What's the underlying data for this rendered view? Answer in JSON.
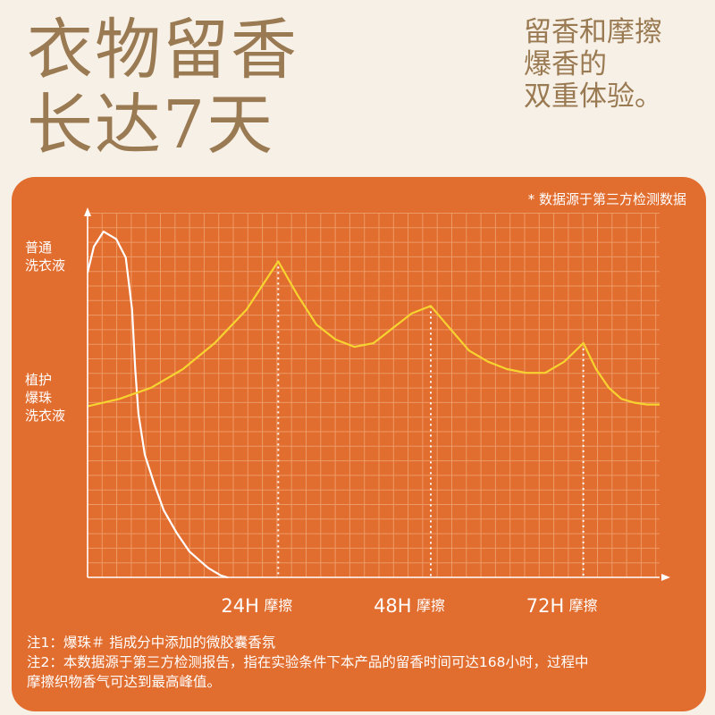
{
  "headline": {
    "line1": "衣物留香",
    "line2": "长达7天"
  },
  "tagline": {
    "line1": "留香和摩擦",
    "line2": "爆香的",
    "line3": "双重体验。"
  },
  "source_note": "* 数据源于第三方检测数据",
  "notes": {
    "note1": "注1：爆珠＃ 指成分中添加的微胶囊香氛",
    "note2_line1": "注2：本数据源于第三方检测报告，指在实验条件下本产品的留香时间可达168小时，过程中",
    "note2_line2": "摩擦织物香气可达到最高峰值。"
  },
  "colors": {
    "panel": "#e16d2f",
    "headline": "#9a7a52",
    "beads_line": "#f7d330",
    "regular_line": "#ffffff",
    "grid": "#ee9a66"
  },
  "chart_data": {
    "type": "line",
    "title": "",
    "xlabel": "",
    "ylabel": "",
    "x_ticks": [
      {
        "x": 24,
        "label": "24H",
        "kind": "time"
      },
      {
        "x": 30,
        "label": "摩擦",
        "kind": "friction"
      },
      {
        "x": 48,
        "label": "48H",
        "kind": "time"
      },
      {
        "x": 54,
        "label": "摩擦",
        "kind": "friction"
      },
      {
        "x": 72,
        "label": "72H",
        "kind": "time"
      },
      {
        "x": 78,
        "label": "摩擦",
        "kind": "friction"
      }
    ],
    "xlim": [
      0,
      90
    ],
    "ylim": [
      0,
      100
    ],
    "friction_markers": [
      30,
      54,
      78
    ],
    "series": [
      {
        "name": "普通洗衣液",
        "label_lines": [
          "普通",
          "洗衣液"
        ],
        "color": "#ffffff",
        "points": [
          [
            0,
            82
          ],
          [
            1,
            89
          ],
          [
            2.5,
            93
          ],
          [
            4.5,
            91
          ],
          [
            6,
            86
          ],
          [
            7,
            72
          ],
          [
            7.5,
            56
          ],
          [
            8,
            44
          ],
          [
            9,
            33
          ],
          [
            10.5,
            25
          ],
          [
            12,
            18
          ],
          [
            14,
            12
          ],
          [
            16,
            7
          ],
          [
            18,
            4
          ],
          [
            19,
            2.5
          ],
          [
            20,
            1.5
          ],
          [
            21,
            0.5
          ],
          [
            22,
            0
          ]
        ]
      },
      {
        "name": "植护爆珠洗衣液",
        "label_lines": [
          "植护",
          "爆珠",
          "洗衣液"
        ],
        "color": "#f7d330",
        "points": [
          [
            0,
            46
          ],
          [
            5,
            48
          ],
          [
            10,
            51
          ],
          [
            15,
            56
          ],
          [
            20,
            63
          ],
          [
            25,
            72
          ],
          [
            30,
            85
          ],
          [
            33,
            76
          ],
          [
            36,
            68
          ],
          [
            39,
            64
          ],
          [
            42,
            62
          ],
          [
            45,
            63
          ],
          [
            48,
            67
          ],
          [
            51,
            71
          ],
          [
            54,
            73
          ],
          [
            57,
            67
          ],
          [
            60,
            61
          ],
          [
            63,
            58
          ],
          [
            66,
            56
          ],
          [
            69,
            55
          ],
          [
            72,
            55
          ],
          [
            75,
            58
          ],
          [
            78,
            63
          ],
          [
            80,
            56
          ],
          [
            82,
            51
          ],
          [
            84,
            48
          ],
          [
            86,
            47
          ],
          [
            88,
            46.5
          ],
          [
            90,
            46.5
          ]
        ]
      }
    ]
  }
}
